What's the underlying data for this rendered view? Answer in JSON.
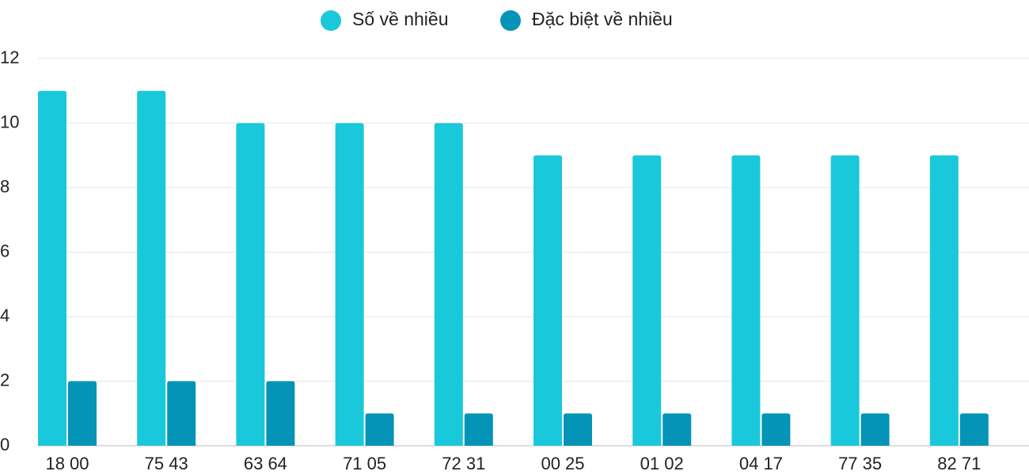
{
  "chart_data": {
    "type": "bar",
    "categories": [
      "18 00",
      "75 43",
      "63 64",
      "71 05",
      "72 31",
      "00 25",
      "01 02",
      "04 17",
      "77 35",
      "82 71"
    ],
    "series": [
      {
        "name": "Số về nhiều",
        "color": "#1ac8dc",
        "values": [
          11,
          11,
          10,
          10,
          10,
          9,
          9,
          9,
          9,
          9
        ]
      },
      {
        "name": "Đặc biệt về nhiều",
        "color": "#0494b8",
        "values": [
          2,
          2,
          2,
          1,
          1,
          1,
          1,
          1,
          1,
          1
        ]
      }
    ],
    "ylim": [
      0,
      12
    ],
    "yticks": [
      0,
      2,
      4,
      6,
      8,
      10,
      12
    ],
    "grid": true,
    "legend": "top"
  }
}
